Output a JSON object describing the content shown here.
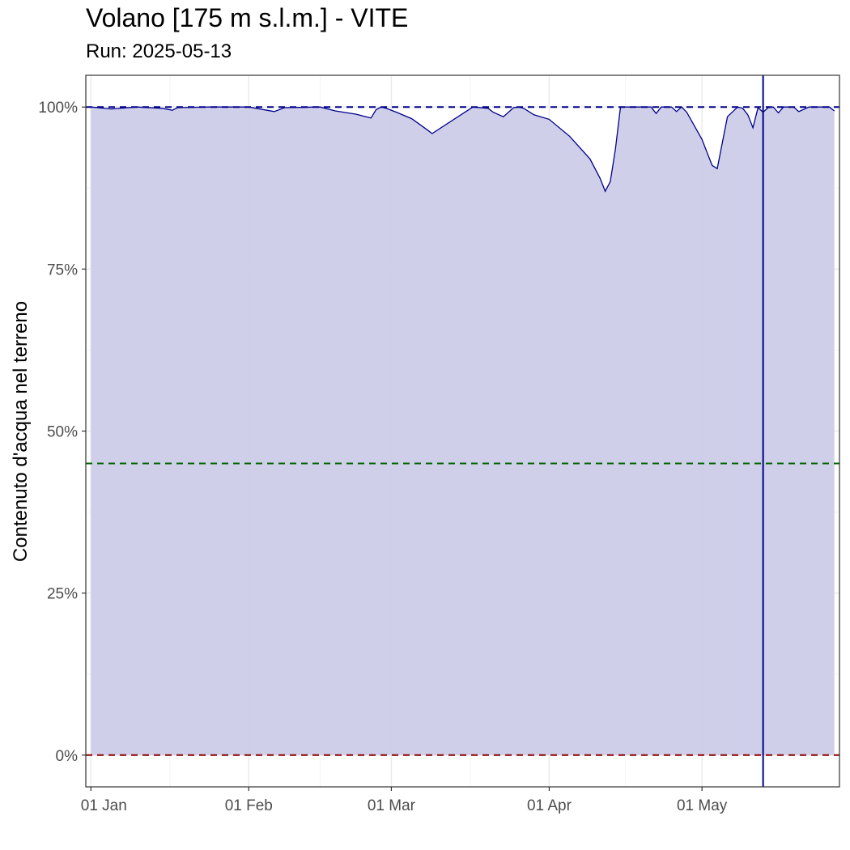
{
  "title": "Volano [175 m s.l.m.] - VITE",
  "subtitle": "Run: 2025-05-13",
  "chart_data": {
    "type": "area",
    "title": "Volano [175 m s.l.m.] - VITE",
    "subtitle": "Run: 2025-05-13",
    "xlabel": "",
    "ylabel": "Contenuto d'acqua nel terreno",
    "x_ticks": [
      {
        "date": "2025-01-01",
        "label": "01 Jan"
      },
      {
        "date": "2025-02-01",
        "label": "01 Feb"
      },
      {
        "date": "2025-03-01",
        "label": "01 Mar"
      },
      {
        "date": "2025-04-01",
        "label": "01 Apr"
      },
      {
        "date": "2025-05-01",
        "label": "01 May"
      }
    ],
    "y_ticks": [
      {
        "value": 0,
        "label": "0%"
      },
      {
        "value": 25,
        "label": "25%"
      },
      {
        "value": 50,
        "label": "50%"
      },
      {
        "value": 75,
        "label": "75%"
      },
      {
        "value": 100,
        "label": "100%"
      }
    ],
    "ylim": [
      -4.9,
      104.9
    ],
    "xlim": [
      "2024-12-31",
      "2025-05-28"
    ],
    "grid": true,
    "series": [
      {
        "x": [
          "2025-01-01",
          "2025-01-05",
          "2025-01-10",
          "2025-01-15",
          "2025-01-17",
          "2025-01-18",
          "2025-01-24",
          "2025-02-01",
          "2025-02-06",
          "2025-02-08",
          "2025-02-15",
          "2025-02-18",
          "2025-02-22",
          "2025-02-25",
          "2025-02-26",
          "2025-02-27",
          "2025-02-28",
          "2025-03-02",
          "2025-03-05",
          "2025-03-08",
          "2025-03-09",
          "2025-03-17",
          "2025-03-20",
          "2025-03-21",
          "2025-03-23",
          "2025-03-25",
          "2025-03-26",
          "2025-03-27",
          "2025-03-29",
          "2025-04-01",
          "2025-04-05",
          "2025-04-09",
          "2025-04-11",
          "2025-04-12",
          "2025-04-13",
          "2025-04-14",
          "2025-04-15",
          "2025-04-21",
          "2025-04-22",
          "2025-04-23",
          "2025-04-25",
          "2025-04-26",
          "2025-04-27",
          "2025-04-28",
          "2025-05-01",
          "2025-05-02",
          "2025-05-03",
          "2025-05-04",
          "2025-05-05",
          "2025-05-06",
          "2025-05-08",
          "2025-05-09",
          "2025-05-10",
          "2025-05-11",
          "2025-05-12",
          "2025-05-13",
          "2025-05-14",
          "2025-05-15",
          "2025-05-16",
          "2025-05-17",
          "2025-05-19",
          "2025-05-20",
          "2025-05-22",
          "2025-05-25",
          "2025-05-26",
          "2025-05-27"
        ],
        "values": [
          100,
          99.7,
          100,
          99.8,
          99.5,
          99.9,
          100,
          100,
          99.3,
          99.9,
          100,
          99.4,
          98.9,
          98.3,
          99.6,
          100,
          99.8,
          99.2,
          98.2,
          96.5,
          95.9,
          100,
          99.8,
          99.2,
          98.5,
          99.9,
          100,
          99.8,
          98.8,
          98.1,
          95.5,
          92,
          89,
          87,
          88.5,
          93.5,
          100,
          100,
          99,
          100,
          100,
          99.3,
          100,
          99.2,
          95,
          93,
          91,
          90.5,
          94.5,
          98.5,
          100,
          99.8,
          98.8,
          96.8,
          99.9,
          99.2,
          99.9,
          100,
          99.1,
          100,
          100,
          99.3,
          100,
          100,
          100,
          99.4
        ]
      }
    ],
    "reference_lines": [
      {
        "value": 100,
        "color": "#00008b",
        "style": "dashed"
      },
      {
        "value": 45,
        "color": "#006400",
        "style": "dashed"
      },
      {
        "value": 0,
        "color": "#8b0000",
        "style": "dashed"
      }
    ],
    "vertical_line": {
      "date": "2025-05-13",
      "color": "#00008b"
    },
    "colors": {
      "fill": "#cccce8",
      "line": "#00008b",
      "grid": "#ebebeb",
      "panel_border": "#333333"
    }
  }
}
